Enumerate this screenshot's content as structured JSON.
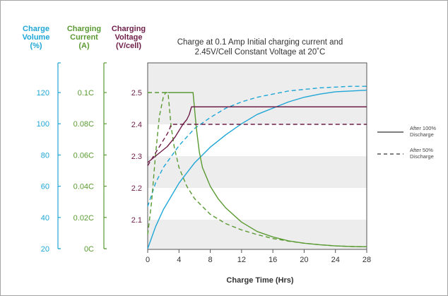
{
  "colors": {
    "volume": "#1ea6d6",
    "current": "#5a9a32",
    "voltage": "#6e1d47",
    "band": "#ededee",
    "frame": "#a5a5a5",
    "text": "#333333"
  },
  "chart_data": {
    "type": "line",
    "title_lines": [
      "Charge at 0.1 Amp Initial charging current and",
      "2.45V/Cell Constant Voltage at 20˚C"
    ],
    "xlabel": "Charge Time (Hrs)",
    "xlim": [
      0,
      28
    ],
    "x_ticks": [
      "0",
      "4",
      "8",
      "12",
      "16",
      "20",
      "24",
      "28"
    ],
    "x_tick_values": [
      0,
      4,
      8,
      12,
      16,
      20,
      24,
      28
    ],
    "y_axes": [
      {
        "id": "volume",
        "header": [
          "Charge",
          "Volume",
          "(%)"
        ],
        "ticks": [
          "20",
          "40",
          "60",
          "80",
          "100",
          "120"
        ],
        "tick_values": [
          20,
          40,
          60,
          80,
          100,
          120
        ],
        "range": [
          20,
          140
        ]
      },
      {
        "id": "current",
        "header": [
          "Charging",
          "Current",
          "(A)"
        ],
        "ticks": [
          "0C",
          "0.02C",
          "0.04C",
          "0.06C",
          "0.08C",
          "0.1C"
        ],
        "tick_values": [
          0,
          0.02,
          0.04,
          0.06,
          0.08,
          0.1
        ],
        "range": [
          0,
          0.12
        ]
      },
      {
        "id": "voltage",
        "header": [
          "Charging",
          "Voltage",
          "(V/cell)"
        ],
        "ticks": [
          "2.1",
          "2.2",
          "2.3",
          "2.4",
          "2.5"
        ],
        "tick_values": [
          2.1,
          2.2,
          2.3,
          2.4,
          2.5
        ],
        "range": [
          2.0,
          2.6
        ]
      }
    ],
    "legend": [
      {
        "lines": [
          "After 100%",
          "Discharge"
        ],
        "style": "solid"
      },
      {
        "lines": [
          "After 50%",
          "Discharge"
        ],
        "style": "dashed"
      }
    ],
    "series": [
      {
        "axis": "volume",
        "style": "solid",
        "x": [
          0,
          1,
          2,
          4,
          6,
          8,
          10,
          12,
          14,
          16,
          18,
          20,
          22,
          24,
          26,
          28
        ],
        "y": [
          20,
          34,
          45,
          62,
          75,
          85,
          93,
          100,
          106,
          110,
          114,
          117,
          119,
          120.5,
          121,
          121.5
        ]
      },
      {
        "axis": "volume",
        "style": "dashed",
        "x": [
          0,
          1,
          2,
          4,
          6,
          8,
          10,
          12,
          14,
          16,
          18,
          20,
          22,
          24,
          26,
          28
        ],
        "y": [
          47,
          62,
          72,
          86,
          97,
          104,
          110,
          114,
          117,
          119,
          121,
          122,
          123,
          123.5,
          124,
          124
        ]
      },
      {
        "axis": "current",
        "style": "solid",
        "x": [
          2.6,
          5.8,
          6.2,
          6.6,
          7,
          8,
          9,
          10,
          12,
          14,
          16,
          18,
          20,
          22,
          24,
          26,
          28
        ],
        "y": [
          0.1,
          0.1,
          0.078,
          0.062,
          0.052,
          0.04,
          0.032,
          0.026,
          0.017,
          0.011,
          0.0075,
          0.005,
          0.0035,
          0.0025,
          0.0018,
          0.0014,
          0.0012
        ],
        "lead": {
          "x": [
            0,
            2.6
          ],
          "y": [
            0.1,
            0.1
          ]
        }
      },
      {
        "axis": "current",
        "style": "dashed",
        "x": [
          0,
          0.5,
          1,
          1.5,
          2,
          2.3,
          2.6,
          3,
          3.4,
          4,
          5,
          6,
          8,
          10,
          12,
          14,
          16,
          18,
          20,
          22,
          24,
          26,
          28
        ],
        "y": [
          0.009,
          0.03,
          0.06,
          0.085,
          0.097,
          0.1,
          0.1,
          0.078,
          0.065,
          0.052,
          0.04,
          0.032,
          0.022,
          0.016,
          0.012,
          0.009,
          0.0065,
          0.0048,
          0.0035,
          0.0025,
          0.0018,
          0.0014,
          0.0012
        ]
      },
      {
        "axis": "voltage",
        "style": "solid",
        "x": [
          0,
          0.5,
          1,
          1.5,
          2,
          2.5,
          3,
          3.5,
          4,
          4.5,
          5,
          5.3,
          5.6,
          6,
          8,
          12,
          16,
          20,
          24,
          28
        ],
        "y": [
          2.28,
          2.29,
          2.3,
          2.31,
          2.32,
          2.33,
          2.345,
          2.36,
          2.38,
          2.4,
          2.415,
          2.43,
          2.455,
          2.455,
          2.455,
          2.455,
          2.455,
          2.455,
          2.455,
          2.455
        ]
      },
      {
        "axis": "voltage",
        "style": "dashed",
        "x": [
          0,
          0.5,
          1,
          1.5,
          2,
          2.5,
          2.8,
          3,
          4,
          8,
          12,
          16,
          20,
          24,
          28
        ],
        "y": [
          2.27,
          2.29,
          2.31,
          2.33,
          2.35,
          2.37,
          2.385,
          2.4,
          2.4,
          2.4,
          2.4,
          2.4,
          2.4,
          2.4,
          2.4
        ]
      }
    ]
  }
}
